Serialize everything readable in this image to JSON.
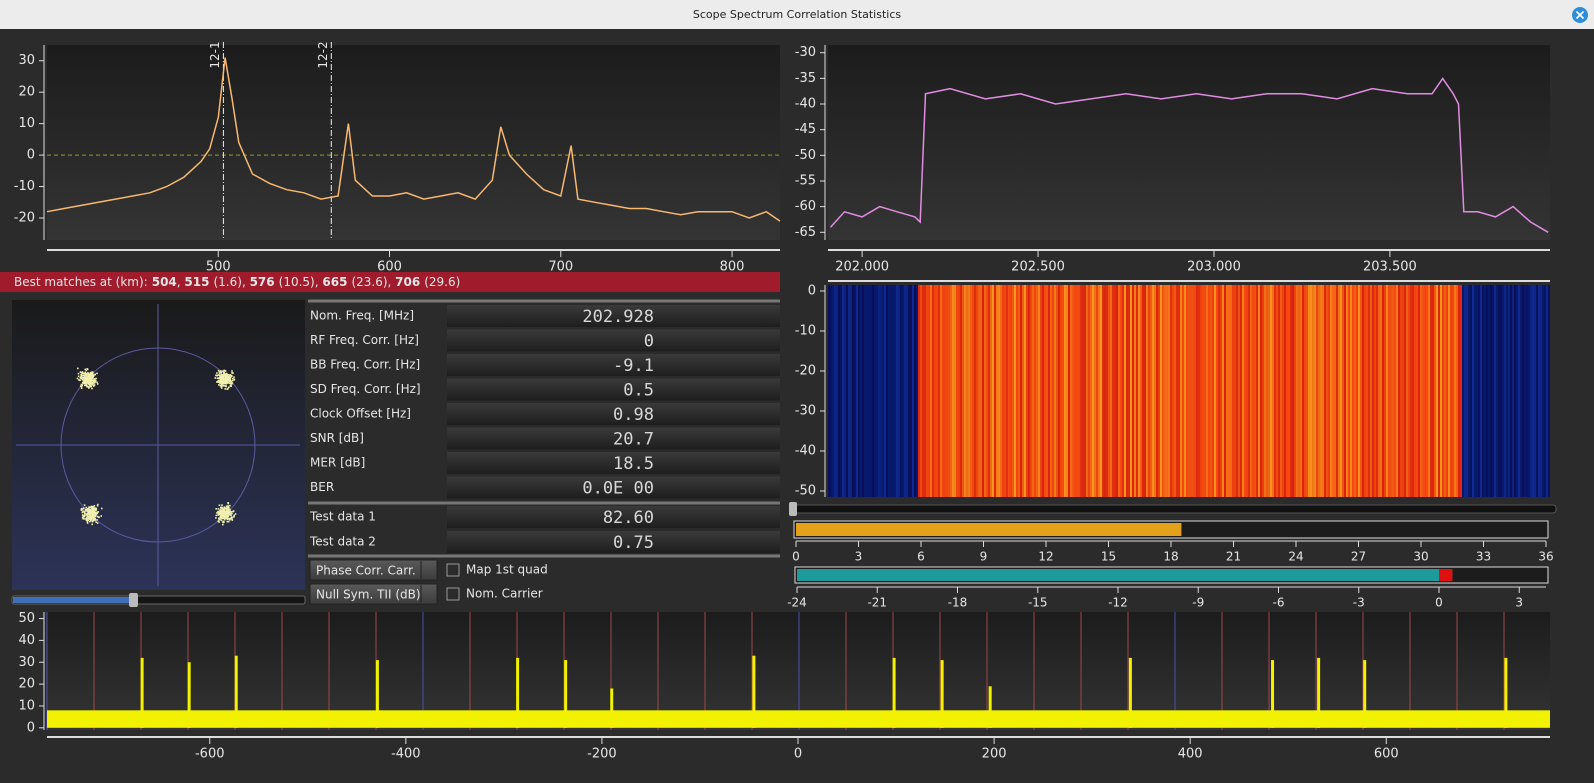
{
  "window": {
    "title": "Scope Spectrum Correlation Statistics"
  },
  "correlation": {
    "type": "line",
    "color": "#f7b870",
    "x": [
      400,
      410,
      420,
      430,
      440,
      450,
      460,
      470,
      480,
      490,
      495,
      500,
      504,
      508,
      512,
      520,
      530,
      540,
      550,
      560,
      570,
      576,
      580,
      590,
      600,
      610,
      620,
      630,
      640,
      650,
      660,
      665,
      670,
      680,
      690,
      700,
      706,
      710,
      720,
      730,
      740,
      750,
      760,
      770,
      780,
      790,
      800,
      810,
      820,
      828
    ],
    "values": [
      -18,
      -17,
      -16,
      -15,
      -14,
      -13,
      -12,
      -10,
      -7,
      -2,
      2,
      12,
      31,
      18,
      4,
      -6,
      -9,
      -11,
      -12,
      -14,
      -13,
      10,
      -8,
      -13,
      -13,
      -12,
      -14,
      -13,
      -12,
      -14,
      -8,
      9,
      0,
      -6,
      -11,
      -13,
      3,
      -14,
      -15,
      -16,
      -17,
      -17,
      -18,
      -19,
      -18,
      -18,
      -18,
      -20,
      -18,
      -21
    ],
    "xlim": [
      400,
      828
    ],
    "ylim": [
      -27,
      35
    ],
    "xticks": [
      500,
      600,
      700,
      800
    ],
    "yticks": [
      -20,
      -10,
      0,
      10,
      20,
      30
    ],
    "reference_line": 0,
    "markers": [
      {
        "x": 503,
        "label": "12-1"
      },
      {
        "x": 566,
        "label": "12-2"
      }
    ]
  },
  "best_matches": {
    "label": "Best matches at (km):",
    "separator": ", ",
    "matches": [
      {
        "km": 504
      },
      {
        "km": 515,
        "value": "(1.6)"
      },
      {
        "km": 576,
        "value": "(10.5)"
      },
      {
        "km": 665,
        "value": "(23.6)"
      },
      {
        "km": 706,
        "value": "(29.6)"
      }
    ]
  },
  "stats": {
    "rows": [
      {
        "label": "Nom. Freq. [MHz]",
        "value": "202.928"
      },
      {
        "label": "RF Freq. Corr. [Hz]",
        "value": "0"
      },
      {
        "label": "BB Freq. Corr. [Hz]",
        "value": "-9.1"
      },
      {
        "label": "SD Freq. Corr. [Hz]",
        "value": "0.5"
      },
      {
        "label": "Clock Offset [Hz]",
        "value": "0.98"
      },
      {
        "label": "SNR [dB]",
        "value": "20.7"
      },
      {
        "label": "MER [dB]",
        "value": "18.5"
      },
      {
        "label": "BER",
        "value": "0.0E 00"
      }
    ],
    "test_rows": [
      {
        "label": "Test data 1",
        "value": "82.60"
      },
      {
        "label": "Test data 2",
        "value": "0.75"
      }
    ]
  },
  "controls": {
    "buttons": [
      "Phase Corr. Carr.",
      "Null Sym. TII (dB)"
    ],
    "checkboxes": [
      "Map 1st quad",
      "Nom. Carrier"
    ]
  },
  "spectrum": {
    "type": "line",
    "color": "#e08ce0",
    "x": [
      201.91,
      201.95,
      202.0,
      202.05,
      202.1,
      202.15,
      202.165,
      202.18,
      202.25,
      202.35,
      202.45,
      202.55,
      202.65,
      202.75,
      202.85,
      202.95,
      203.05,
      203.15,
      203.25,
      203.35,
      203.45,
      203.55,
      203.62,
      203.65,
      203.68,
      203.695,
      203.71,
      203.75,
      203.8,
      203.85,
      203.9,
      203.95
    ],
    "values": [
      -64,
      -61,
      -62,
      -60,
      -61,
      -62,
      -63,
      -38,
      -37,
      -39,
      -38,
      -40,
      -39,
      -38,
      -39,
      -38,
      -39,
      -38,
      -38,
      -39,
      -37,
      -38,
      -38,
      -35,
      -38,
      -40,
      -61,
      -61,
      -62,
      -60,
      -63,
      -65
    ],
    "xlim": [
      201.903,
      203.955
    ],
    "ylim": [
      -66.5,
      -28.5
    ],
    "xticks": [
      {
        "value": 202,
        "label": "202.000"
      },
      {
        "value": 202.5,
        "label": "202.500"
      },
      {
        "value": 203,
        "label": "203.000"
      },
      {
        "value": 203.5,
        "label": "203.500"
      }
    ],
    "yticks": [
      -30,
      -35,
      -40,
      -45,
      -50,
      -55,
      -60,
      -65
    ]
  },
  "waterfall": {
    "ylim": [
      -51.5,
      1.5
    ],
    "yticks": [
      0,
      -10,
      -20,
      -30,
      -40,
      -50
    ]
  },
  "meters": [
    {
      "xlim": [
        0,
        36
      ],
      "xticks": [
        0,
        3,
        6,
        9,
        12,
        15,
        18,
        21,
        24,
        27,
        30,
        33,
        36
      ],
      "value": 18.5,
      "color": "#e3a21a"
    },
    {
      "xlim": [
        -24,
        4
      ],
      "xticks": [
        -24,
        -21,
        -18,
        -15,
        -12,
        -9,
        -6,
        -3,
        0,
        3
      ],
      "value": 0.5,
      "color": "#1f9a9a"
    }
  ],
  "tii": {
    "type": "bar",
    "color": "#f2f200",
    "x": [
      -669,
      -621,
      -573,
      -429,
      -286,
      -237,
      -190,
      -45,
      98,
      147,
      196,
      339,
      484,
      531,
      578,
      722
    ],
    "values": [
      32,
      30,
      33,
      31,
      32,
      31,
      18,
      33,
      32,
      31,
      19,
      32,
      31,
      32,
      31,
      32
    ],
    "baseline": 8,
    "xlim": [
      -766,
      767
    ],
    "ylim": [
      -1,
      53
    ],
    "xticks": [
      -600,
      -400,
      -200,
      0,
      200,
      400,
      600
    ],
    "yticks": [
      0,
      10,
      20,
      30,
      40,
      50
    ]
  }
}
